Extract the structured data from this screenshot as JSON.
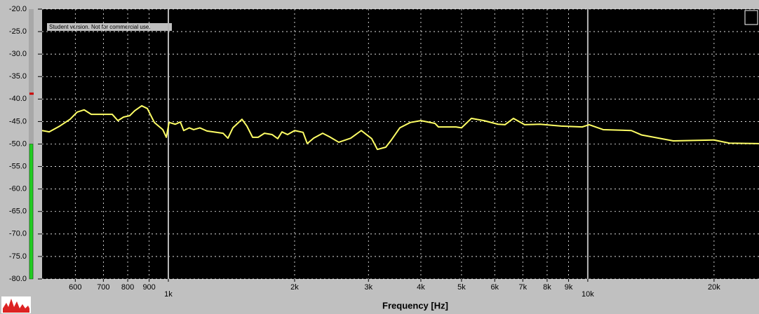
{
  "chart_data": {
    "type": "line",
    "x_label": "Frequency [Hz]",
    "annotation": "Student version. Not for commercial use.",
    "xscale": "log",
    "grid": true,
    "xlim": [
      500,
      25600
    ],
    "ylim": [
      -80,
      -20
    ],
    "xticks": [
      600,
      700,
      800,
      900,
      {
        "value": 1000,
        "label": "1k"
      },
      {
        "value": 2000,
        "label": "2k"
      },
      {
        "value": 3000,
        "label": "3k"
      },
      {
        "value": 4000,
        "label": "4k"
      },
      {
        "value": 5000,
        "label": "5k"
      },
      {
        "value": 6000,
        "label": "6k"
      },
      {
        "value": 7000,
        "label": "7k"
      },
      {
        "value": 8000,
        "label": "8k"
      },
      {
        "value": 9000,
        "label": "9k"
      },
      {
        "value": 10000,
        "label": "10k"
      },
      {
        "value": 20000,
        "label": "20k"
      }
    ],
    "yticks": [
      {
        "value": -20,
        "label": "-20.0"
      },
      {
        "value": -25,
        "label": "-25.0"
      },
      {
        "value": -30,
        "label": "-30.0"
      },
      {
        "value": -35,
        "label": "-35.0"
      },
      {
        "value": -40,
        "label": "-40.0"
      },
      {
        "value": -45,
        "label": "-45.0"
      },
      {
        "value": -50,
        "label": "-50.0"
      },
      {
        "value": -55,
        "label": "-55.0"
      },
      {
        "value": -60,
        "label": "-60.0"
      },
      {
        "value": -65,
        "label": "-65.0"
      },
      {
        "value": -70,
        "label": "-70.0"
      },
      {
        "value": -75,
        "label": "-75.0"
      },
      {
        "value": -80,
        "label": "-80.0"
      }
    ],
    "meter_level": -50,
    "meter_peak": -38.8,
    "meter_color": "#22cc22",
    "peak_color": "#cc0000",
    "x": [
      500,
      520,
      551,
      583,
      606,
      630,
      655,
      735,
      758,
      782,
      809,
      831,
      864,
      891,
      926,
      970,
      989,
      1004,
      1039,
      1068,
      1088,
      1122,
      1149,
      1189,
      1236,
      1350,
      1387,
      1425,
      1498,
      1539,
      1588,
      1637,
      1695,
      1768,
      1823,
      1866,
      1924,
      2000,
      2095,
      2144,
      2220,
      2333,
      2424,
      2549,
      2721,
      2884,
      3054,
      3150,
      3299,
      3402,
      3563,
      3776,
      3999,
      4320,
      4405,
      4850,
      5000,
      5278,
      5656,
      6109,
      6347,
      6648,
      7070,
      7697,
      8639,
      9697,
      10077,
      10884,
      12700,
      13456,
      15996,
      20000,
      21770,
      25590
    ],
    "series": [
      {
        "color": "#ffff66",
        "values": [
          -47.0,
          -47.3,
          -46.0,
          -44.5,
          -42.9,
          -42.4,
          -43.4,
          -43.4,
          -44.8,
          -44.0,
          -43.7,
          -42.6,
          -41.5,
          -42.1,
          -45.2,
          -46.8,
          -48.5,
          -45.2,
          -45.6,
          -45.1,
          -47.0,
          -46.4,
          -46.8,
          -46.4,
          -47.1,
          -47.6,
          -48.7,
          -46.4,
          -44.5,
          -46.0,
          -48.5,
          -48.5,
          -47.6,
          -47.9,
          -48.8,
          -47.3,
          -47.9,
          -47.0,
          -47.4,
          -49.9,
          -48.7,
          -47.6,
          -48.4,
          -49.6,
          -48.7,
          -47.0,
          -48.8,
          -51.2,
          -50.7,
          -49.1,
          -46.4,
          -45.2,
          -44.8,
          -45.4,
          -46.2,
          -46.2,
          -46.4,
          -44.3,
          -44.8,
          -45.6,
          -45.7,
          -44.3,
          -45.7,
          -45.6,
          -46.0,
          -46.2,
          -45.7,
          -46.8,
          -47.0,
          -48.0,
          -49.3,
          -49.1,
          -49.8,
          -49.9
        ]
      }
    ]
  }
}
